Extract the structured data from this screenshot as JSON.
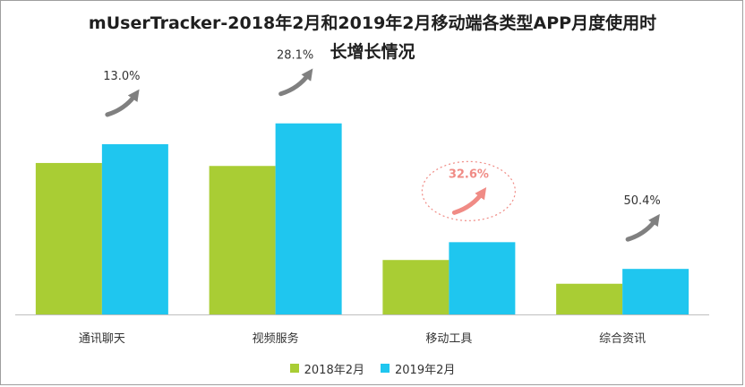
{
  "chart_data": {
    "type": "bar",
    "title_line1": "mUserTracker-2018年2月和2019年2月移动端各类型APP月度使用时",
    "title_line2": "长增长情况",
    "categories": [
      "通讯聊天",
      "视频服务",
      "移动工具",
      "综合资讯"
    ],
    "series": [
      {
        "name": "2018年2月",
        "color": "#a9cd34",
        "values": [
          153,
          150,
          55,
          31
        ]
      },
      {
        "name": "2019年2月",
        "color": "#1fc6ef",
        "values": [
          172,
          193,
          73,
          46
        ]
      }
    ],
    "growth_labels": [
      "13.0%",
      "28.1%",
      "32.6%",
      "50.4%"
    ],
    "highlight_index": 2,
    "highlight_color": "#f08b85",
    "arrow_color": "#808080",
    "ylim": [
      0,
      200
    ],
    "grid": false,
    "legend_position": "bottom"
  }
}
